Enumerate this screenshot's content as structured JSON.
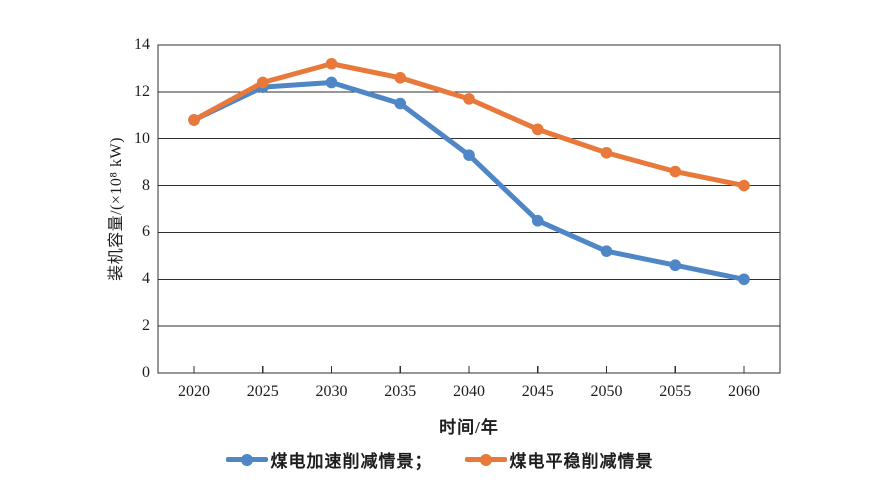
{
  "figure": {
    "background": "#ffffff",
    "axis_color": "#2f2f2f",
    "grid_color": "#2f2f2f",
    "text_color": "#1d1d1d"
  },
  "chart_data": {
    "type": "line",
    "title": "",
    "xlabel": "时间/年",
    "ylabel": "装机容量/(×10⁸ kW)",
    "categories": [
      "2020",
      "2025",
      "2030",
      "2035",
      "2040",
      "2045",
      "2050",
      "2055",
      "2060"
    ],
    "y_ticks": [
      0,
      2,
      4,
      6,
      8,
      10,
      12,
      14
    ],
    "ylim": [
      0,
      14
    ],
    "grid": "horizontal",
    "legend_position": "bottom-center",
    "series": [
      {
        "name": "煤电加速削减情景",
        "legend_label": "煤电加速削减情景；",
        "color": "#4E86C6",
        "marker": "circle",
        "values": [
          10.8,
          12.2,
          12.4,
          11.5,
          9.3,
          6.5,
          5.2,
          4.6,
          4.0
        ]
      },
      {
        "name": "煤电平稳削减情景",
        "legend_label": "煤电平稳削减情景",
        "color": "#E8793A",
        "marker": "circle",
        "values": [
          10.8,
          12.4,
          13.2,
          12.6,
          11.7,
          10.4,
          9.4,
          8.6,
          8.0
        ]
      }
    ]
  }
}
